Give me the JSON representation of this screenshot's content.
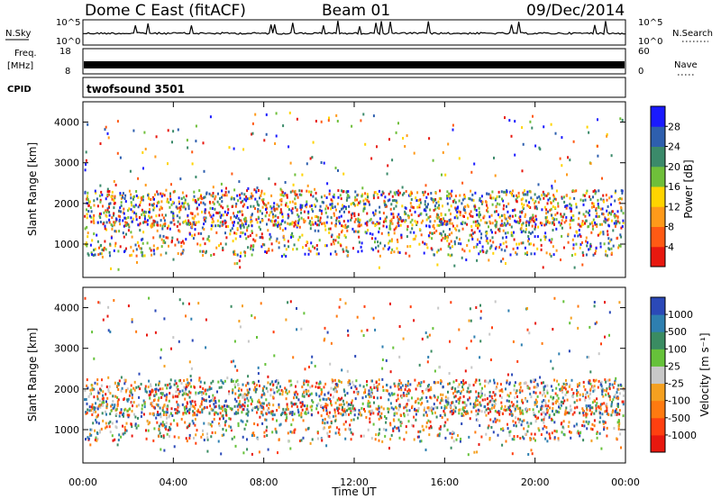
{
  "header": {
    "station": "Dome C East (fitACF)",
    "beam": "Beam 01",
    "date": "09/Dec/2014"
  },
  "strip_panels": {
    "nsky": {
      "label": "N.Sky",
      "ticks": [
        "10^5",
        "10^0"
      ]
    },
    "nsearch": {
      "label": "N.Search",
      "ticks": [
        "10^5",
        "10^0"
      ]
    },
    "freq": {
      "label": "Freq.",
      "unit": "[MHz]",
      "ticks": [
        "18",
        "8"
      ]
    },
    "nave": {
      "label": "Nave",
      "ticks": [
        "60",
        "0"
      ]
    },
    "cpid": {
      "label": "CPID",
      "program": "twofsound 3501"
    }
  },
  "chart_data": [
    {
      "type": "heatmap",
      "ylabel": "Slant Range [km]",
      "xlabel": "",
      "ylim": [
        180,
        4500
      ],
      "yticks": [
        "1000",
        "2000",
        "3000",
        "4000"
      ],
      "xlim": [
        "00:00",
        "24:00"
      ],
      "colorbar": {
        "label": "Power [dB]",
        "ticks": [
          "4",
          "8",
          "12",
          "16",
          "20",
          "24",
          "28"
        ],
        "colors": [
          "#1a1aff",
          "#2e5fae",
          "#3b8a6a",
          "#6fbf3a",
          "#ffd400",
          "#ff9a1a",
          "#ff5a14",
          "#e8180f"
        ]
      }
    },
    {
      "type": "heatmap",
      "ylabel": "Slant Range [km]",
      "xlabel": "Time UT",
      "ylim": [
        180,
        4500
      ],
      "yticks": [
        "1000",
        "2000",
        "3000",
        "4000"
      ],
      "xticks": [
        "00:00",
        "04:00",
        "08:00",
        "12:00",
        "16:00",
        "20:00",
        "00:00"
      ],
      "colorbar": {
        "label": "Velocity [m s⁻¹]",
        "ticks": [
          "1000",
          "500",
          "100",
          "25",
          "-25",
          "-100",
          "-500",
          "-1000"
        ],
        "colors": [
          "#2b49b8",
          "#2e7fb0",
          "#3a8c62",
          "#66c23a",
          "#c8c8c8",
          "#f5a020",
          "#ff7a10",
          "#ff4010",
          "#e8180f"
        ]
      }
    }
  ]
}
